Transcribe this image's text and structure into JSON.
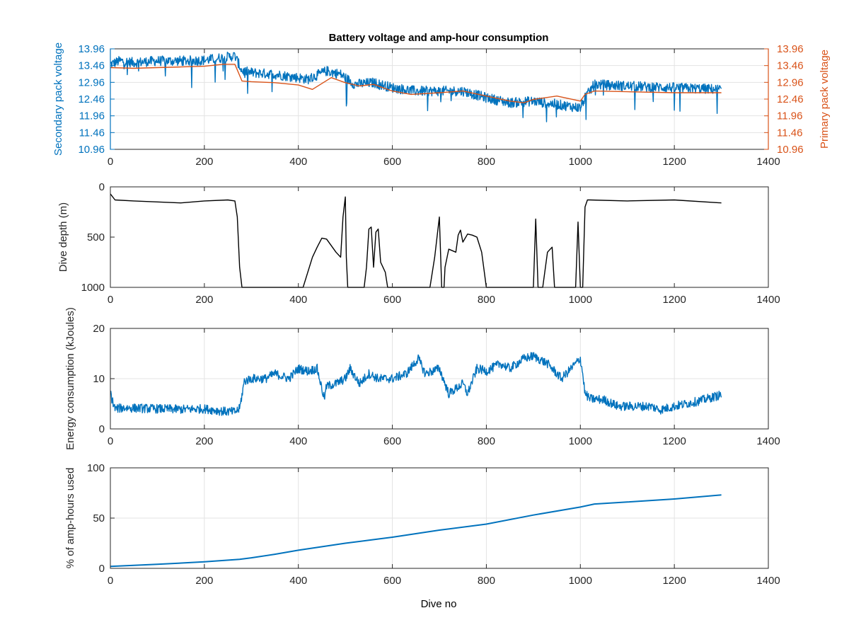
{
  "figure": {
    "title": "Battery voltage and amp-hour consumption",
    "xlabel": "Dive no"
  },
  "chart_data": [
    {
      "type": "line",
      "title": "Battery voltage and amp-hour consumption",
      "xlabel": "",
      "ylabel": "Secondary pack voltage",
      "y2label": "Primary pack voltage",
      "xlim": [
        0,
        1400
      ],
      "ylim": [
        10.96,
        13.96
      ],
      "y2lim": [
        10.96,
        13.96
      ],
      "xticks": [
        0,
        200,
        400,
        600,
        800,
        1000,
        1200,
        1400
      ],
      "yticks": [
        10.96,
        11.46,
        11.96,
        12.46,
        12.96,
        13.46,
        13.96
      ],
      "grid": true,
      "colors": {
        "secondary": "#0072BD",
        "primary": "#D95319"
      },
      "series": [
        {
          "name": "",
          "axis": "left",
          "x": [
            0,
            20,
            50,
            100,
            150,
            200,
            240,
            265,
            280,
            300,
            350,
            400,
            420,
            460,
            490,
            520,
            560,
            600,
            650,
            700,
            750,
            800,
            850,
            900,
            950,
            1000,
            1010,
            1030,
            1100,
            1200,
            1300
          ],
          "y": [
            13.5,
            13.6,
            13.55,
            13.6,
            13.6,
            13.62,
            13.7,
            13.75,
            13.3,
            13.25,
            13.2,
            13.1,
            13.05,
            13.3,
            13.2,
            12.9,
            12.95,
            12.8,
            12.7,
            12.7,
            12.7,
            12.5,
            12.35,
            12.4,
            12.3,
            12.2,
            12.5,
            12.9,
            12.85,
            12.8,
            12.75
          ],
          "noise_band": 0.15
        },
        {
          "name": "",
          "axis": "right",
          "x": [
            0,
            50,
            100,
            150,
            200,
            240,
            265,
            280,
            300,
            350,
            400,
            430,
            470,
            500,
            530,
            560,
            600,
            640,
            700,
            750,
            800,
            850,
            880,
            900,
            950,
            1000,
            1010,
            1030,
            1100,
            1200,
            1300
          ],
          "y": [
            13.4,
            13.38,
            13.4,
            13.42,
            13.44,
            13.5,
            13.5,
            13.0,
            12.98,
            12.95,
            12.88,
            12.75,
            13.1,
            12.95,
            12.85,
            12.9,
            12.7,
            12.6,
            12.65,
            12.7,
            12.55,
            12.4,
            12.35,
            12.45,
            12.55,
            12.4,
            12.6,
            12.7,
            12.68,
            12.65,
            12.65
          ]
        }
      ]
    },
    {
      "type": "line",
      "title": "",
      "xlabel": "",
      "ylabel": "Dive depth (m)",
      "xlim": [
        0,
        1400
      ],
      "ylim": [
        1000,
        0
      ],
      "y_reversed": true,
      "xticks": [
        0,
        200,
        400,
        600,
        800,
        1000,
        1200,
        1400
      ],
      "yticks": [
        0,
        500,
        1000
      ],
      "ytick_labels": [
        "0",
        "500",
        "1000"
      ],
      "grid": false,
      "colors": {
        "line": "#000000"
      },
      "series": [
        {
          "name": "",
          "x": [
            0,
            10,
            50,
            100,
            150,
            200,
            250,
            265,
            270,
            275,
            280,
            300,
            350,
            410,
            420,
            430,
            440,
            450,
            460,
            480,
            490,
            495,
            500,
            502,
            505,
            510,
            540,
            545,
            550,
            555,
            560,
            565,
            570,
            575,
            580,
            585,
            590,
            600,
            680,
            690,
            700,
            705,
            710,
            712,
            720,
            735,
            740,
            745,
            750,
            760,
            770,
            780,
            790,
            800,
            900,
            905,
            910,
            915,
            920,
            930,
            940,
            945,
            950,
            990,
            995,
            1000,
            1005,
            1010,
            1015,
            1020,
            1100,
            1200,
            1300
          ],
          "y": [
            70,
            130,
            140,
            150,
            160,
            140,
            130,
            140,
            300,
            800,
            1000,
            1000,
            1000,
            1000,
            850,
            700,
            600,
            510,
            520,
            650,
            700,
            300,
            100,
            700,
            1000,
            1000,
            1000,
            800,
            420,
            400,
            800,
            450,
            420,
            750,
            800,
            850,
            1000,
            1000,
            1000,
            700,
            300,
            1000,
            1000,
            800,
            620,
            650,
            480,
            430,
            550,
            470,
            480,
            500,
            650,
            1000,
            1000,
            320,
            1000,
            1000,
            1000,
            650,
            600,
            1000,
            1000,
            1000,
            350,
            1000,
            1000,
            200,
            130,
            130,
            140,
            130,
            160
          ]
        }
      ]
    },
    {
      "type": "line",
      "title": "",
      "xlabel": "",
      "ylabel": "Energy consumption (kJoules)",
      "xlim": [
        0,
        1400
      ],
      "ylim": [
        0,
        20
      ],
      "xticks": [
        0,
        200,
        400,
        600,
        800,
        1000,
        1200,
        1400
      ],
      "yticks": [
        0,
        10,
        20
      ],
      "grid": true,
      "colors": {
        "line": "#0072BD"
      },
      "series": [
        {
          "name": "",
          "x": [
            0,
            3,
            10,
            30,
            100,
            150,
            200,
            240,
            265,
            275,
            285,
            300,
            330,
            350,
            380,
            400,
            420,
            440,
            455,
            460,
            480,
            500,
            510,
            530,
            550,
            570,
            600,
            630,
            655,
            670,
            700,
            720,
            750,
            760,
            780,
            800,
            830,
            850,
            880,
            900,
            930,
            960,
            1000,
            1005,
            1010,
            1020,
            1050,
            1080,
            1100,
            1150,
            1170,
            1200,
            1250,
            1300
          ],
          "y": [
            7.5,
            6,
            4,
            4.2,
            4,
            3.9,
            4,
            3.5,
            3.4,
            4,
            9.5,
            10,
            10,
            11,
            10,
            12,
            11.5,
            12,
            6,
            8.5,
            9,
            10,
            12,
            9,
            11,
            10,
            10,
            11,
            14,
            11,
            12,
            7,
            9,
            7,
            12,
            11.5,
            13,
            12,
            14,
            14.5,
            13,
            10,
            14,
            11,
            7,
            6,
            5.8,
            4.5,
            4.5,
            4.5,
            3.8,
            4.5,
            5.5,
            6.8
          ],
          "noise_band": 0.9
        }
      ]
    },
    {
      "type": "line",
      "title": "",
      "xlabel": "Dive no",
      "ylabel": "% of amp-hours used",
      "xlim": [
        0,
        1400
      ],
      "ylim": [
        0,
        100
      ],
      "xticks": [
        0,
        200,
        400,
        600,
        800,
        1000,
        1200,
        1400
      ],
      "yticks": [
        0,
        50,
        100
      ],
      "grid": true,
      "colors": {
        "line": "#0072BD"
      },
      "series": [
        {
          "name": "",
          "x": [
            0,
            100,
            200,
            275,
            300,
            350,
            400,
            500,
            600,
            700,
            800,
            900,
            1000,
            1030,
            1100,
            1200,
            1300
          ],
          "y": [
            2,
            4,
            6.5,
            9,
            10.5,
            14,
            18,
            25,
            31,
            38,
            44,
            53,
            61,
            64,
            66,
            69,
            73
          ]
        }
      ]
    }
  ]
}
